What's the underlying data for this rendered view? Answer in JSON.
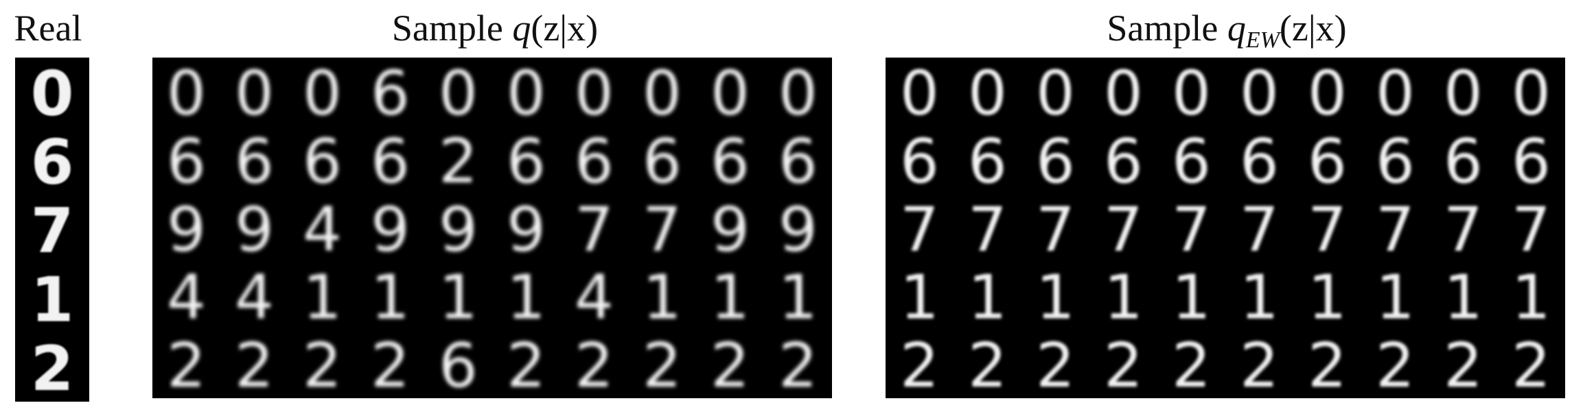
{
  "titles": {
    "real": "Real",
    "q_prefix": "Sample ",
    "q_math": "q",
    "q_args": "(z|x)",
    "qew_prefix": "Sample ",
    "qew_math": "q",
    "qew_sub": "EW",
    "qew_args": "(z|x)"
  },
  "grids": {
    "real": [
      [
        "0"
      ],
      [
        "6"
      ],
      [
        "7"
      ],
      [
        "1"
      ],
      [
        "2"
      ]
    ],
    "q": [
      [
        "0",
        "0",
        "0",
        "6",
        "0",
        "0",
        "0",
        "0",
        "0",
        "0"
      ],
      [
        "6",
        "6",
        "6",
        "6",
        "2",
        "6",
        "6",
        "6",
        "6",
        "6"
      ],
      [
        "9",
        "9",
        "4",
        "9",
        "9",
        "9",
        "7",
        "7",
        "9",
        "9"
      ],
      [
        "4",
        "4",
        "1",
        "1",
        "1",
        "1",
        "4",
        "1",
        "1",
        "1"
      ],
      [
        "2",
        "2",
        "2",
        "2",
        "6",
        "2",
        "2",
        "2",
        "2",
        "2"
      ]
    ],
    "qew": [
      [
        "0",
        "0",
        "0",
        "0",
        "0",
        "0",
        "0",
        "0",
        "0",
        "0"
      ],
      [
        "6",
        "6",
        "6",
        "6",
        "6",
        "6",
        "6",
        "6",
        "6",
        "6"
      ],
      [
        "7",
        "7",
        "7",
        "7",
        "7",
        "7",
        "7",
        "7",
        "7",
        "7"
      ],
      [
        "1",
        "1",
        "1",
        "1",
        "1",
        "1",
        "1",
        "1",
        "1",
        "1"
      ],
      [
        "2",
        "2",
        "2",
        "2",
        "2",
        "2",
        "2",
        "2",
        "2",
        "2"
      ]
    ]
  },
  "colors": {
    "background": "#000000",
    "digit": "#f2f2f2"
  }
}
